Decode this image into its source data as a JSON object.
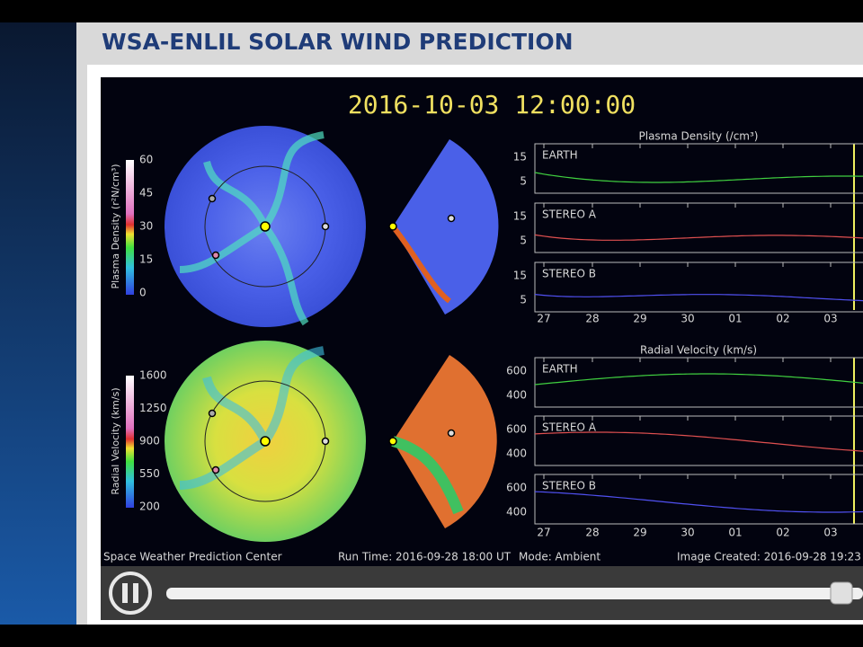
{
  "header": {
    "title": "WSA-ENLIL SOLAR WIND PREDICTION"
  },
  "viewer": {
    "timestamp": "2016-10-03  12:00:00",
    "colorbars": [
      {
        "label": "Plasma Density (r²N/cm³)",
        "ticks": [
          "60",
          "45",
          "30",
          "15",
          "0"
        ]
      },
      {
        "label": "Radial Velocity (km/s)",
        "ticks": [
          "1600",
          "1250",
          "900",
          "550",
          "200"
        ]
      }
    ],
    "panels": [
      {
        "title": "Plasma Density (/cm³)",
        "subplots": [
          {
            "label": "EARTH",
            "yticks": [
              "15",
              "5"
            ]
          },
          {
            "label": "STEREO A",
            "yticks": [
              "15",
              "5"
            ]
          },
          {
            "label": "STEREO B",
            "yticks": [
              "15",
              "5"
            ]
          }
        ],
        "xticks": [
          "27",
          "28",
          "29",
          "30",
          "01",
          "02",
          "03"
        ]
      },
      {
        "title": "Radial Velocity (km/s)",
        "subplots": [
          {
            "label": "EARTH",
            "yticks": [
              "600",
              "400"
            ]
          },
          {
            "label": "STEREO A",
            "yticks": [
              "600",
              "400"
            ]
          },
          {
            "label": "STEREO B",
            "yticks": [
              "600",
              "400"
            ]
          }
        ],
        "xticks": [
          "27",
          "28",
          "29",
          "30",
          "01",
          "02",
          "03"
        ]
      }
    ],
    "footer": {
      "center": "Space Weather Prediction Center",
      "run_time": "Run Time: 2016-09-28 18:00 UT",
      "mode": "Mode: Ambient",
      "image_created": "Image Created: 2016-09-28 19:23"
    }
  }
}
